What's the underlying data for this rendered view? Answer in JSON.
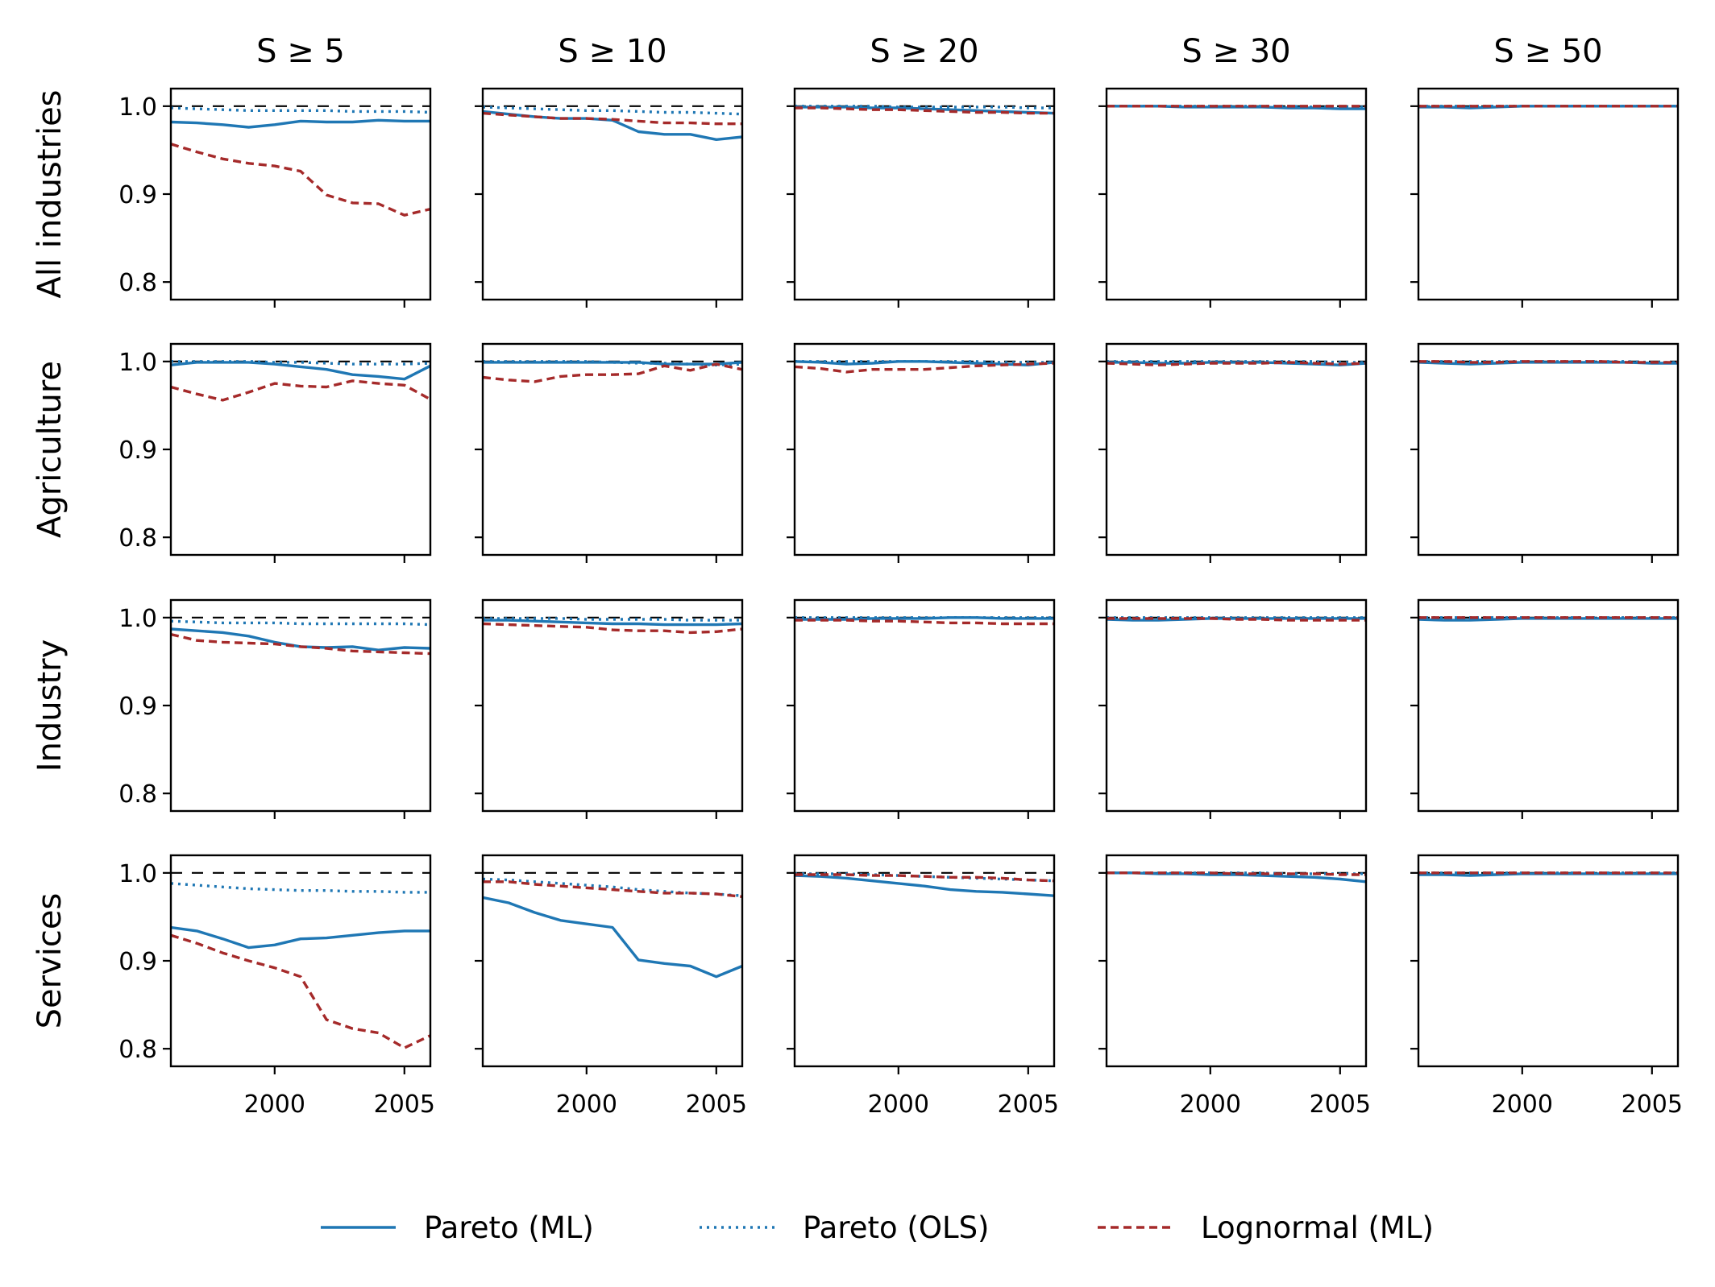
{
  "chart_data": {
    "type": "line",
    "layout": "4 rows x 5 columns small multiples, shared axes",
    "column_titles": [
      "S ≥ 5",
      "S ≥ 10",
      "S ≥ 20",
      "S ≥ 30",
      "S ≥ 50"
    ],
    "row_labels": [
      "All industries",
      "Agriculture",
      "Industry",
      "Services"
    ],
    "x_ticks": [
      2000,
      2005
    ],
    "x_tick_labels": [
      "2000",
      "2005"
    ],
    "xlim": [
      1996,
      2006
    ],
    "y_ticks": [
      0.8,
      0.9,
      1.0
    ],
    "y_tick_labels": [
      "0.8",
      "0.9",
      "1.0"
    ],
    "ylim": [
      0.78,
      1.02
    ],
    "reference_line": 1.0,
    "x": [
      1996,
      1997,
      1998,
      1999,
      2000,
      2001,
      2002,
      2003,
      2004,
      2005,
      2006
    ],
    "series_styles": [
      {
        "name": "Pareto (ML)",
        "color": "#1f77b4",
        "dash": "solid"
      },
      {
        "name": "Pareto (OLS)",
        "color": "#1f77b4",
        "dash": "dotted"
      },
      {
        "name": "Lognormal (ML)",
        "color": "#a52a2a",
        "dash": "dashed"
      }
    ],
    "legend": {
      "location": "bottom-center",
      "entries": [
        "Pareto (ML)",
        "Pareto (OLS)",
        "Lognormal (ML)"
      ]
    },
    "panels": [
      [
        {
          "series": [
            [
              0.982,
              0.981,
              0.979,
              0.976,
              0.979,
              0.983,
              0.982,
              0.982,
              0.984,
              0.983,
              0.983
            ],
            [
              0.998,
              0.997,
              0.996,
              0.995,
              0.995,
              0.995,
              0.995,
              0.994,
              0.994,
              0.994,
              0.993
            ],
            [
              0.957,
              0.948,
              0.94,
              0.935,
              0.932,
              0.926,
              0.899,
              0.89,
              0.889,
              0.876,
              0.883
            ]
          ]
        },
        {
          "series": [
            [
              0.994,
              0.991,
              0.988,
              0.986,
              0.986,
              0.984,
              0.971,
              0.968,
              0.968,
              0.962,
              0.965
            ],
            [
              0.999,
              0.998,
              0.997,
              0.996,
              0.995,
              0.995,
              0.994,
              0.993,
              0.993,
              0.992,
              0.991
            ],
            [
              0.992,
              0.99,
              0.988,
              0.986,
              0.986,
              0.985,
              0.983,
              0.981,
              0.981,
              0.98,
              0.98
            ]
          ]
        },
        {
          "series": [
            [
              0.999,
              0.999,
              0.999,
              0.998,
              0.998,
              0.997,
              0.996,
              0.995,
              0.994,
              0.993,
              0.992
            ],
            [
              1.0,
              1.0,
              1.0,
              1.0,
              0.999,
              0.999,
              0.999,
              0.999,
              0.999,
              0.998,
              0.998
            ],
            [
              0.998,
              0.998,
              0.997,
              0.996,
              0.996,
              0.995,
              0.994,
              0.993,
              0.993,
              0.992,
              0.992
            ]
          ]
        },
        {
          "series": [
            [
              1.0,
              1.0,
              1.0,
              0.999,
              0.999,
              0.999,
              0.999,
              0.998,
              0.998,
              0.997,
              0.997
            ],
            [
              1.0,
              1.0,
              1.0,
              1.0,
              1.0,
              1.0,
              1.0,
              1.0,
              0.999,
              0.999,
              0.999
            ],
            [
              1.0,
              1.0,
              1.0,
              1.0,
              1.0,
              1.0,
              1.0,
              1.0,
              1.0,
              1.0,
              1.0
            ]
          ]
        },
        {
          "series": [
            [
              0.999,
              0.999,
              0.998,
              0.999,
              1.0,
              1.0,
              1.0,
              1.0,
              1.0,
              1.0,
              1.0
            ],
            [
              1.0,
              1.0,
              1.0,
              1.0,
              1.0,
              1.0,
              1.0,
              1.0,
              1.0,
              1.0,
              1.0
            ],
            [
              1.0,
              1.0,
              1.0,
              1.0,
              1.0,
              1.0,
              1.0,
              1.0,
              1.0,
              1.0,
              1.0
            ]
          ]
        }
      ],
      [
        {
          "series": [
            [
              0.996,
              0.999,
              0.999,
              0.999,
              0.997,
              0.994,
              0.991,
              0.985,
              0.983,
              0.98,
              0.995
            ],
            [
              1.0,
              1.0,
              1.0,
              1.0,
              0.999,
              0.999,
              0.998,
              0.997,
              0.997,
              0.997,
              0.998
            ],
            [
              0.971,
              0.963,
              0.956,
              0.965,
              0.975,
              0.972,
              0.971,
              0.978,
              0.975,
              0.973,
              0.957
            ]
          ]
        },
        {
          "series": [
            [
              0.999,
              0.999,
              0.999,
              0.999,
              0.999,
              0.999,
              0.999,
              0.997,
              0.997,
              0.997,
              0.999
            ],
            [
              1.0,
              1.0,
              1.0,
              1.0,
              1.0,
              0.999,
              0.998,
              0.998,
              0.997,
              0.996,
              0.997
            ],
            [
              0.982,
              0.979,
              0.977,
              0.983,
              0.985,
              0.985,
              0.986,
              0.995,
              0.99,
              0.997,
              0.991
            ]
          ]
        },
        {
          "series": [
            [
              1.0,
              0.999,
              0.997,
              0.998,
              1.0,
              1.0,
              0.999,
              0.998,
              0.997,
              0.996,
              0.999
            ],
            [
              1.0,
              1.0,
              1.0,
              1.0,
              1.0,
              1.0,
              1.0,
              1.0,
              0.999,
              0.999,
              0.999
            ],
            [
              0.994,
              0.992,
              0.988,
              0.991,
              0.991,
              0.991,
              0.993,
              0.995,
              0.996,
              0.997,
              0.998
            ]
          ]
        },
        {
          "series": [
            [
              0.999,
              0.999,
              0.998,
              0.998,
              0.999,
              0.999,
              0.999,
              0.998,
              0.997,
              0.996,
              0.998
            ],
            [
              1.0,
              1.0,
              1.0,
              1.0,
              1.0,
              1.0,
              1.0,
              1.0,
              1.0,
              0.999,
              0.999
            ],
            [
              0.998,
              0.997,
              0.996,
              0.997,
              0.998,
              0.998,
              0.998,
              0.999,
              0.998,
              0.997,
              0.998
            ]
          ]
        },
        {
          "series": [
            [
              0.999,
              0.998,
              0.997,
              0.998,
              0.999,
              0.999,
              0.999,
              0.999,
              0.999,
              0.998,
              0.998
            ],
            [
              1.0,
              1.0,
              1.0,
              1.0,
              1.0,
              1.0,
              1.0,
              1.0,
              1.0,
              0.999,
              0.999
            ],
            [
              1.0,
              1.0,
              0.999,
              0.999,
              1.0,
              1.0,
              1.0,
              1.0,
              0.999,
              0.999,
              0.999
            ]
          ]
        }
      ],
      [
        {
          "series": [
            [
              0.987,
              0.985,
              0.983,
              0.979,
              0.972,
              0.967,
              0.966,
              0.967,
              0.963,
              0.966,
              0.965
            ],
            [
              0.996,
              0.995,
              0.994,
              0.994,
              0.994,
              0.993,
              0.993,
              0.993,
              0.993,
              0.993,
              0.992
            ],
            [
              0.981,
              0.974,
              0.972,
              0.971,
              0.97,
              0.967,
              0.965,
              0.962,
              0.961,
              0.96,
              0.959
            ]
          ]
        },
        {
          "series": [
            [
              0.997,
              0.997,
              0.996,
              0.995,
              0.994,
              0.993,
              0.993,
              0.992,
              0.992,
              0.992,
              0.993
            ],
            [
              0.999,
              0.999,
              0.999,
              0.999,
              0.998,
              0.998,
              0.998,
              0.998,
              0.997,
              0.997,
              0.997
            ],
            [
              0.993,
              0.992,
              0.991,
              0.99,
              0.989,
              0.986,
              0.985,
              0.985,
              0.983,
              0.984,
              0.987
            ]
          ]
        },
        {
          "series": [
            [
              0.998,
              0.998,
              0.998,
              0.999,
              0.999,
              0.999,
              1.0,
              1.0,
              0.999,
              0.999,
              0.999
            ],
            [
              1.0,
              1.0,
              1.0,
              1.0,
              1.0,
              1.0,
              1.0,
              1.0,
              1.0,
              1.0,
              1.0
            ],
            [
              0.997,
              0.997,
              0.997,
              0.996,
              0.996,
              0.995,
              0.994,
              0.994,
              0.993,
              0.993,
              0.993
            ]
          ]
        },
        {
          "series": [
            [
              0.998,
              0.997,
              0.997,
              0.998,
              0.999,
              0.999,
              0.999,
              0.999,
              0.999,
              0.999,
              0.999
            ],
            [
              1.0,
              1.0,
              1.0,
              1.0,
              1.0,
              1.0,
              1.0,
              1.0,
              1.0,
              1.0,
              1.0
            ],
            [
              0.999,
              0.999,
              0.999,
              0.999,
              0.999,
              0.998,
              0.998,
              0.997,
              0.997,
              0.997,
              0.997
            ]
          ]
        },
        {
          "series": [
            [
              0.998,
              0.997,
              0.997,
              0.998,
              0.999,
              0.999,
              0.999,
              0.999,
              0.999,
              0.999,
              0.999
            ],
            [
              1.0,
              1.0,
              1.0,
              1.0,
              1.0,
              1.0,
              1.0,
              1.0,
              1.0,
              1.0,
              1.0
            ],
            [
              1.0,
              1.0,
              1.0,
              1.0,
              1.0,
              1.0,
              1.0,
              1.0,
              1.0,
              1.0,
              1.0
            ]
          ]
        }
      ],
      [
        {
          "series": [
            [
              0.938,
              0.934,
              0.925,
              0.915,
              0.918,
              0.925,
              0.926,
              0.929,
              0.932,
              0.934,
              0.934
            ],
            [
              0.988,
              0.986,
              0.984,
              0.982,
              0.981,
              0.98,
              0.98,
              0.979,
              0.979,
              0.978,
              0.978
            ],
            [
              0.929,
              0.92,
              0.909,
              0.9,
              0.892,
              0.882,
              0.833,
              0.823,
              0.818,
              0.801,
              0.815
            ]
          ]
        },
        {
          "series": [
            [
              0.972,
              0.966,
              0.955,
              0.946,
              0.942,
              0.938,
              0.901,
              0.897,
              0.894,
              0.882,
              0.894
            ],
            [
              0.993,
              0.992,
              0.99,
              0.988,
              0.986,
              0.984,
              0.981,
              0.979,
              0.977,
              0.976,
              0.974
            ],
            [
              0.99,
              0.99,
              0.987,
              0.985,
              0.983,
              0.981,
              0.979,
              0.977,
              0.977,
              0.976,
              0.973
            ]
          ]
        },
        {
          "series": [
            [
              0.997,
              0.996,
              0.994,
              0.991,
              0.988,
              0.985,
              0.981,
              0.979,
              0.978,
              0.976,
              0.974
            ],
            [
              0.999,
              0.999,
              0.999,
              0.998,
              0.997,
              0.996,
              0.995,
              0.994,
              0.993,
              0.992,
              0.991
            ],
            [
              0.998,
              0.998,
              0.998,
              0.997,
              0.997,
              0.996,
              0.995,
              0.995,
              0.994,
              0.992,
              0.991
            ]
          ]
        },
        {
          "series": [
            [
              1.0,
              1.0,
              0.999,
              0.999,
              0.998,
              0.998,
              0.997,
              0.996,
              0.995,
              0.993,
              0.99
            ],
            [
              1.0,
              1.0,
              1.0,
              1.0,
              1.0,
              1.0,
              1.0,
              0.999,
              0.999,
              0.999,
              0.999
            ],
            [
              1.0,
              1.0,
              1.0,
              1.0,
              1.0,
              0.999,
              0.999,
              0.999,
              0.999,
              0.998,
              0.998
            ]
          ]
        },
        {
          "series": [
            [
              0.998,
              0.998,
              0.997,
              0.998,
              0.999,
              0.999,
              0.999,
              0.999,
              0.999,
              0.999,
              0.999
            ],
            [
              1.0,
              1.0,
              1.0,
              1.0,
              1.0,
              1.0,
              1.0,
              1.0,
              1.0,
              1.0,
              1.0
            ],
            [
              1.0,
              1.0,
              1.0,
              1.0,
              1.0,
              1.0,
              1.0,
              1.0,
              1.0,
              1.0,
              1.0
            ]
          ]
        }
      ]
    ]
  }
}
